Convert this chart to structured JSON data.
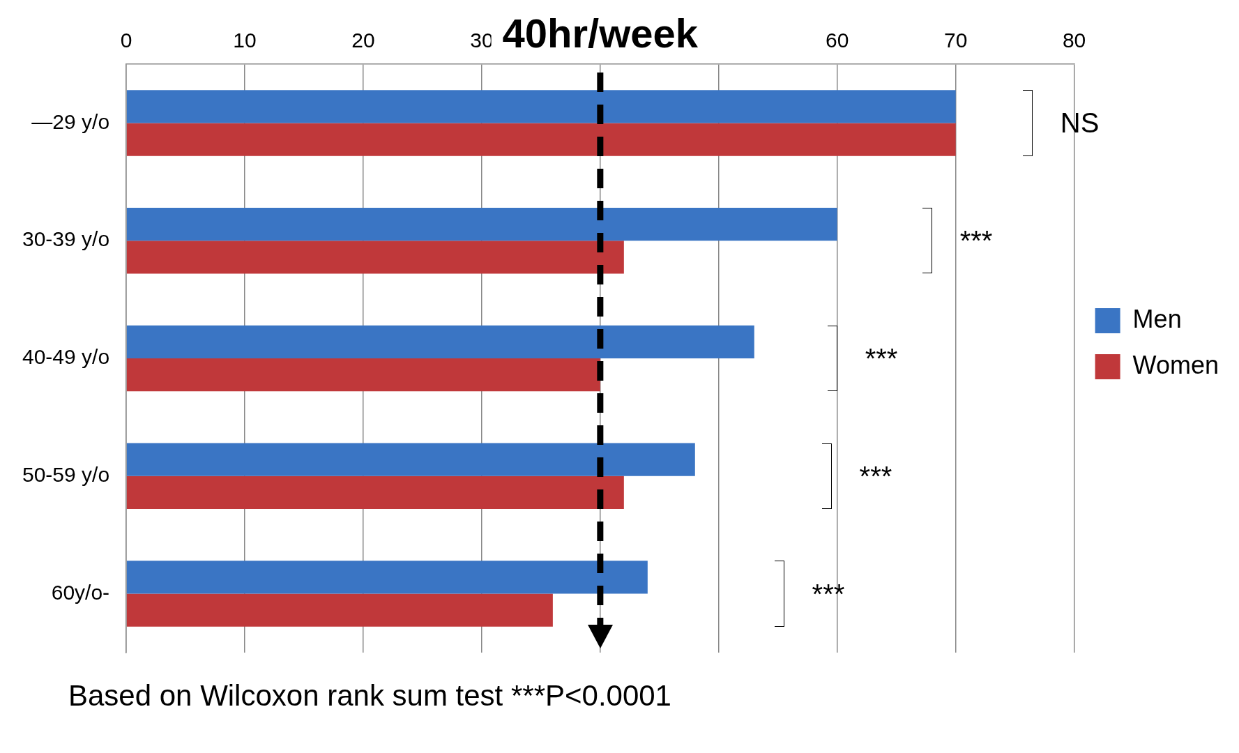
{
  "chart_data": {
    "type": "bar",
    "orientation": "horizontal",
    "categories": [
      "—29 y/o",
      "30-39 y/o",
      "40-49 y/o",
      "50-59 y/o",
      "60y/o-"
    ],
    "series": [
      {
        "name": "Men",
        "color": "#3a75c4",
        "values": [
          70,
          60,
          53,
          48,
          44
        ]
      },
      {
        "name": "Women",
        "color": "#c0383a",
        "values": [
          70,
          42,
          40,
          42,
          36
        ]
      }
    ],
    "xlim": [
      0,
      80
    ],
    "xticks": [
      0,
      10,
      20,
      30,
      {
        "value": 40,
        "label": null
      },
      {
        "value": 50,
        "label": null
      },
      60,
      70,
      80
    ],
    "grid": "x",
    "legend": "right",
    "ref_lines": [
      {
        "axis": "x",
        "value": 40,
        "label": "40hr/week",
        "color": "#000000",
        "line_style": "dashed"
      }
    ],
    "annotations": [
      "NS",
      "***",
      "***",
      "***",
      "***",
      "Based on Wilcoxon rank sum test ***P<0.0001"
    ]
  }
}
